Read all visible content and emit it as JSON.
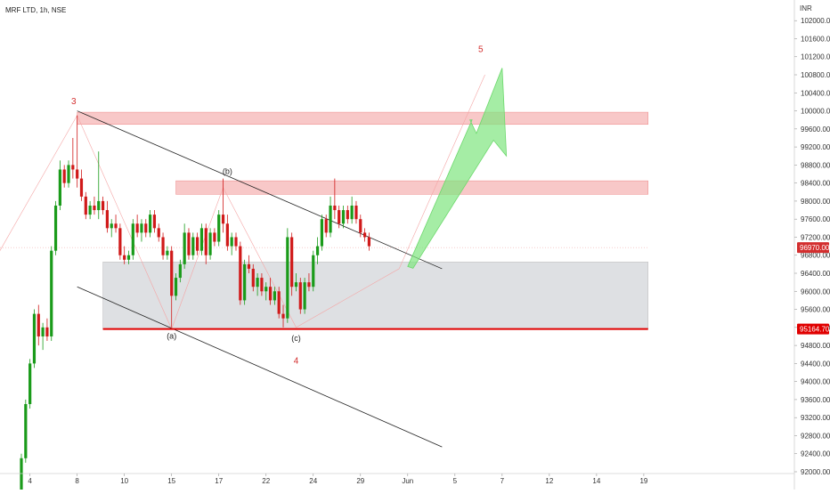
{
  "header": {
    "title": "MRF LTD, 1h, NSE"
  },
  "chart_data": {
    "type": "candlestick",
    "title": "MRF LTD, 1h, NSE",
    "currency": "INR",
    "ylim": [
      92000,
      102300
    ],
    "y_ticks": [
      "102000.00",
      "101600.00",
      "101200.00",
      "100800.00",
      "100400.00",
      "100000.00",
      "99600.00",
      "99200.00",
      "98800.00",
      "98400.00",
      "98000.00",
      "97600.00",
      "97200.00",
      "96800.00",
      "96400.00",
      "96000.00",
      "95600.00",
      "95200.00",
      "94800.00",
      "94400.00",
      "94000.00",
      "93600.00",
      "93200.00",
      "92800.00",
      "92400.00",
      "92000.00"
    ],
    "x_ticks": [
      {
        "label": "4",
        "i": 2
      },
      {
        "label": "8",
        "i": 13
      },
      {
        "label": "10",
        "i": 24
      },
      {
        "label": "15",
        "i": 35
      },
      {
        "label": "17",
        "i": 46
      },
      {
        "label": "22",
        "i": 57
      },
      {
        "label": "24",
        "i": 68
      },
      {
        "label": "29",
        "i": 79
      },
      {
        "label": "Jun",
        "i": 90
      },
      {
        "label": "5",
        "i": 101
      },
      {
        "label": "7",
        "i": 112
      },
      {
        "label": "12",
        "i": 123
      },
      {
        "label": "14",
        "i": 134
      },
      {
        "label": "19",
        "i": 145
      }
    ],
    "last_price": {
      "label": "96970.00",
      "value": 96970
    },
    "support_price": {
      "label": "95164.70",
      "value": 95164.7
    },
    "candles": [
      [
        91500,
        92400,
        91400,
        92300
      ],
      [
        92300,
        93600,
        92200,
        93500
      ],
      [
        93500,
        94500,
        93400,
        94400
      ],
      [
        94400,
        95600,
        94300,
        95500
      ],
      [
        95500,
        95700,
        94800,
        95000
      ],
      [
        95000,
        95300,
        94700,
        95200
      ],
      [
        95200,
        95400,
        94900,
        95000
      ],
      [
        95000,
        97000,
        94900,
        96900
      ],
      [
        96900,
        98000,
        96800,
        97900
      ],
      [
        97900,
        98900,
        97800,
        98700
      ],
      [
        98700,
        98800,
        98300,
        98400
      ],
      [
        98400,
        98900,
        98300,
        98800
      ],
      [
        98800,
        99400,
        98500,
        98700
      ],
      [
        98700,
        99900,
        98300,
        98500
      ],
      [
        98500,
        98700,
        98000,
        98100
      ],
      [
        98100,
        98200,
        97600,
        97700
      ],
      [
        97700,
        98000,
        97600,
        97900
      ],
      [
        97900,
        98100,
        97700,
        97800
      ],
      [
        97800,
        99100,
        97600,
        98000
      ],
      [
        98000,
        98100,
        97700,
        97800
      ],
      [
        97800,
        98000,
        97300,
        97400
      ],
      [
        97400,
        97600,
        97200,
        97500
      ],
      [
        97500,
        97700,
        97300,
        97400
      ],
      [
        97400,
        97500,
        96700,
        96800
      ],
      [
        96800,
        97000,
        96600,
        96700
      ],
      [
        96700,
        96900,
        96600,
        96800
      ],
      [
        96800,
        97600,
        96700,
        97500
      ],
      [
        97500,
        97700,
        97200,
        97300
      ],
      [
        97300,
        97600,
        97100,
        97500
      ],
      [
        97500,
        97600,
        97200,
        97300
      ],
      [
        97300,
        97800,
        97200,
        97700
      ],
      [
        97700,
        97800,
        97300,
        97400
      ],
      [
        97400,
        97500,
        97100,
        97200
      ],
      [
        97200,
        97300,
        96700,
        96800
      ],
      [
        96800,
        97000,
        96700,
        96900
      ],
      [
        96900,
        97000,
        95200,
        95900
      ],
      [
        95900,
        96400,
        95800,
        96300
      ],
      [
        96300,
        96700,
        96200,
        96600
      ],
      [
        96600,
        97500,
        96500,
        97300
      ],
      [
        97300,
        97400,
        96700,
        96800
      ],
      [
        96800,
        97300,
        96700,
        97200
      ],
      [
        97200,
        97300,
        96800,
        96900
      ],
      [
        96900,
        97500,
        96800,
        97400
      ],
      [
        97400,
        97500,
        96600,
        96800
      ],
      [
        96800,
        97400,
        96700,
        97300
      ],
      [
        97300,
        97400,
        97000,
        97100
      ],
      [
        97100,
        97800,
        97000,
        97700
      ],
      [
        97700,
        98500,
        97300,
        97500
      ],
      [
        97500,
        97700,
        96900,
        97000
      ],
      [
        97000,
        97300,
        96800,
        97200
      ],
      [
        97200,
        97300,
        96900,
        97000
      ],
      [
        97000,
        97100,
        95700,
        95800
      ],
      [
        95800,
        96700,
        95700,
        96600
      ],
      [
        96600,
        96800,
        96400,
        96500
      ],
      [
        96500,
        96600,
        96000,
        96100
      ],
      [
        96100,
        96400,
        95900,
        96300
      ],
      [
        96300,
        96400,
        95900,
        96000
      ],
      [
        96000,
        96200,
        95800,
        96100
      ],
      [
        96100,
        96300,
        95700,
        95800
      ],
      [
        95800,
        96100,
        95700,
        96000
      ],
      [
        96000,
        96100,
        95400,
        95500
      ],
      [
        95500,
        95700,
        95200,
        95400
      ],
      [
        95400,
        97400,
        95300,
        97200
      ],
      [
        97200,
        97300,
        95900,
        96100
      ],
      [
        96100,
        96400,
        96000,
        96200
      ],
      [
        96200,
        96300,
        95500,
        95600
      ],
      [
        95600,
        96300,
        95500,
        96200
      ],
      [
        96200,
        96400,
        96000,
        96100
      ],
      [
        96100,
        96900,
        96000,
        96800
      ],
      [
        96800,
        97200,
        96600,
        97000
      ],
      [
        97000,
        97700,
        96900,
        97600
      ],
      [
        97600,
        97700,
        97200,
        97300
      ],
      [
        97300,
        98100,
        97200,
        97900
      ],
      [
        97900,
        98500,
        97600,
        97800
      ],
      [
        97800,
        97900,
        97400,
        97500
      ],
      [
        97500,
        97900,
        97400,
        97800
      ],
      [
        97800,
        97900,
        97500,
        97600
      ],
      [
        97600,
        98100,
        97500,
        97900
      ],
      [
        97900,
        98000,
        97500,
        97600
      ],
      [
        97600,
        97700,
        97200,
        97300
      ],
      [
        97300,
        97400,
        97100,
        97200
      ],
      [
        97200,
        97300,
        96900,
        97000
      ]
    ],
    "annotations": [
      {
        "label": "3",
        "color": "#d32f2f"
      },
      {
        "label": "(b)",
        "color": "#222222"
      },
      {
        "label": "(a)",
        "color": "#222222"
      },
      {
        "label": "(c)",
        "color": "#222222"
      },
      {
        "label": "4",
        "color": "#d32f2f"
      },
      {
        "label": "5",
        "color": "#d32f2f"
      }
    ],
    "colors": {
      "up": "#1a9b1a",
      "down": "#d01a1a",
      "resistance_zone": "#f5b0b0",
      "support_zone": "#d3d6d9",
      "support_line": "#e00000",
      "arrow": "#7fe57f",
      "channel": "#222222",
      "last_price_bg": "#d32f2f"
    }
  }
}
